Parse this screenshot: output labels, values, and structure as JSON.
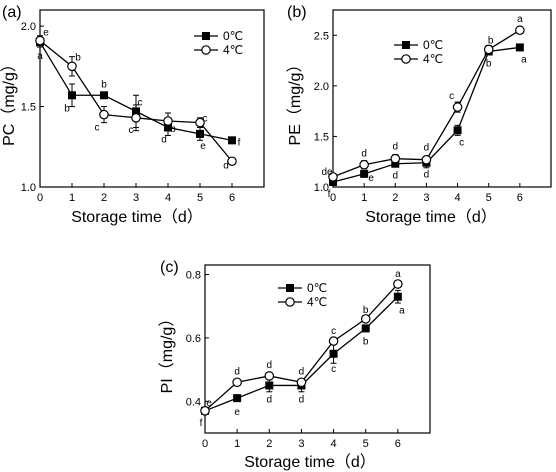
{
  "chart_data": [
    {
      "panel_label": "(a)",
      "type": "line",
      "xlabel": "Storage time（d）",
      "ylabel": "PC（mg/g）",
      "x": [
        0,
        1,
        2,
        3,
        4,
        5,
        6
      ],
      "xlim": [
        0,
        7
      ],
      "ylim": [
        1.0,
        2.1
      ],
      "xticks": [
        "0",
        "1",
        "2",
        "3",
        "4",
        "5",
        "6"
      ],
      "yticks": [
        "1.0",
        "1.5",
        "2.0"
      ],
      "legend_position": "top-right",
      "series": [
        {
          "name": "0℃",
          "marker": "filled-square",
          "values": [
            1.9,
            1.57,
            1.57,
            1.47,
            1.37,
            1.33,
            1.29
          ],
          "errors": [
            0.03,
            0.07,
            0.02,
            0.1,
            0.05,
            0.04,
            0.01
          ],
          "letters": [
            "a",
            "b",
            "b",
            "c",
            "d",
            "e",
            "f"
          ]
        },
        {
          "name": "4℃",
          "marker": "open-circle",
          "values": [
            1.91,
            1.75,
            1.45,
            1.43,
            1.41,
            1.4,
            1.16
          ],
          "errors": [
            0.03,
            0.06,
            0.05,
            0.08,
            0.05,
            0.03,
            0.02
          ],
          "letters": [
            "e",
            "b",
            "c",
            "c",
            "b",
            "c",
            "d"
          ]
        }
      ]
    },
    {
      "panel_label": "(b)",
      "type": "line",
      "xlabel": "Storage time（d）",
      "ylabel": "PE（mg/g）",
      "x": [
        0,
        1,
        2,
        3,
        4,
        5,
        6
      ],
      "xlim": [
        0,
        7
      ],
      "ylim": [
        1.0,
        2.75
      ],
      "xticks": [
        "0",
        "1",
        "2",
        "3",
        "4",
        "5",
        "6"
      ],
      "yticks": [
        "1.0",
        "1.5",
        "2.0",
        "2.5"
      ],
      "legend_position": "top-center",
      "series": [
        {
          "name": "0℃",
          "marker": "filled-square",
          "values": [
            1.05,
            1.13,
            1.23,
            1.24,
            1.56,
            2.34,
            2.38
          ],
          "errors": [
            0.02,
            0.03,
            0.03,
            0.05,
            0.05,
            0.03,
            0.02
          ],
          "letters": [
            "f",
            "e",
            "d",
            "d",
            "c",
            "b",
            "a"
          ]
        },
        {
          "name": "4℃",
          "marker": "open-circle",
          "values": [
            1.1,
            1.22,
            1.28,
            1.27,
            1.79,
            2.36,
            2.55
          ],
          "errors": [
            0.02,
            0.04,
            0.04,
            0.03,
            0.05,
            0.04,
            0.02
          ],
          "letters": [
            "de",
            "d",
            "d",
            "d",
            "c",
            "b",
            "a"
          ]
        }
      ]
    },
    {
      "panel_label": "(c)",
      "type": "line",
      "xlabel": "Storage time（d）",
      "ylabel": "PI（mg/g）",
      "x": [
        0,
        1,
        2,
        3,
        4,
        5,
        6
      ],
      "xlim": [
        0,
        7
      ],
      "ylim": [
        0.3,
        0.83
      ],
      "xticks": [
        "0",
        "1",
        "2",
        "3",
        "4",
        "5",
        "6"
      ],
      "yticks": [
        "0.4",
        "0.6",
        "0.8"
      ],
      "legend_position": "top-left",
      "series": [
        {
          "name": "0℃",
          "marker": "filled-square",
          "values": [
            0.37,
            0.41,
            0.45,
            0.45,
            0.55,
            0.63,
            0.73
          ],
          "errors": [
            0.01,
            0.01,
            0.02,
            0.02,
            0.03,
            0.01,
            0.02
          ],
          "letters": [
            "f",
            "e",
            "d",
            "d",
            "c",
            "b",
            "a"
          ]
        },
        {
          "name": "4℃",
          "marker": "open-circle",
          "values": [
            0.37,
            0.46,
            0.48,
            0.46,
            0.59,
            0.66,
            0.77
          ],
          "errors": [
            0.01,
            0.01,
            0.01,
            0.01,
            0.01,
            0.01,
            0.01
          ],
          "letters": [
            "e",
            "d",
            "d",
            "d",
            "c",
            "b",
            "a"
          ]
        }
      ]
    }
  ]
}
